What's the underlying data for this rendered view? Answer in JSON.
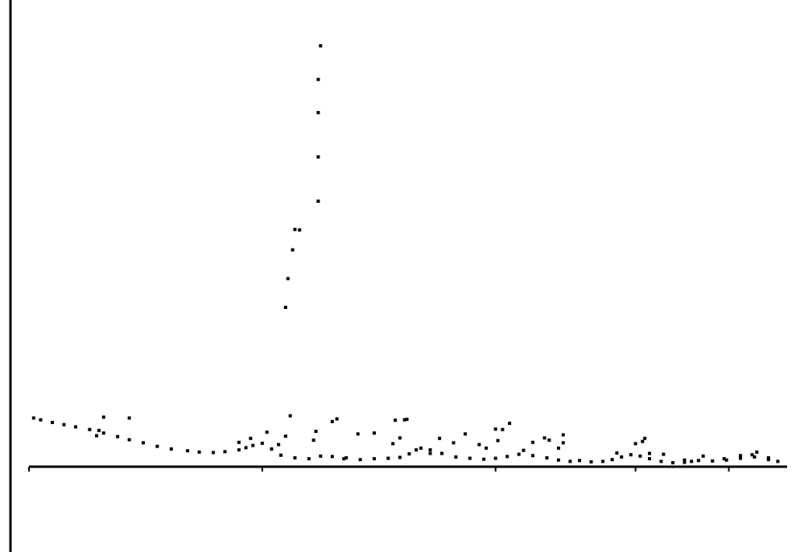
{
  "chart_data": {
    "type": "scatter",
    "title": "",
    "xlabel": "",
    "ylabel": "",
    "grid": false,
    "legend": "top-right",
    "xlim": [
      0,
      32.5
    ],
    "ylim": [
      0,
      100
    ],
    "x_ticks": [
      0,
      10,
      20,
      26,
      30
    ],
    "series": [
      {
        "points": [
          [
            0.2,
            11.0
          ],
          [
            0.5,
            10.6
          ],
          [
            1.0,
            10.0
          ],
          [
            1.5,
            9.5
          ],
          [
            2.0,
            9.0
          ],
          [
            2.6,
            8.4
          ],
          [
            3.2,
            7.6
          ],
          [
            3.8,
            6.8
          ],
          [
            4.3,
            6.1
          ],
          [
            4.9,
            5.4
          ],
          [
            5.5,
            4.6
          ],
          [
            6.1,
            4.0
          ],
          [
            6.8,
            3.6
          ],
          [
            7.3,
            3.3
          ],
          [
            7.9,
            3.2
          ],
          [
            8.4,
            3.4
          ],
          [
            9.0,
            3.8
          ],
          [
            9.3,
            4.3
          ],
          [
            9.6,
            4.8
          ],
          [
            10.0,
            5.3
          ],
          [
            10.4,
            4.0
          ],
          [
            10.8,
            2.6
          ],
          [
            11.4,
            2.0
          ],
          [
            12.0,
            1.8
          ],
          [
            12.5,
            2.4
          ],
          [
            13.0,
            2.3
          ],
          [
            13.6,
            2.0
          ],
          [
            14.2,
            1.6
          ],
          [
            14.8,
            1.8
          ],
          [
            15.4,
            1.9
          ],
          [
            15.9,
            2.1
          ],
          [
            16.3,
            2.9
          ],
          [
            16.8,
            4.2
          ],
          [
            17.2,
            3.8
          ],
          [
            17.7,
            3.0
          ],
          [
            18.3,
            2.2
          ],
          [
            18.9,
            1.9
          ],
          [
            19.5,
            1.7
          ],
          [
            20.0,
            1.9
          ],
          [
            20.5,
            2.3
          ],
          [
            21.0,
            2.8
          ],
          [
            21.6,
            2.5
          ],
          [
            22.2,
            2.0
          ],
          [
            22.7,
            1.5
          ],
          [
            23.2,
            1.2
          ],
          [
            23.6,
            1.4
          ],
          [
            24.1,
            1.1
          ],
          [
            24.6,
            1.2
          ],
          [
            25.0,
            1.6
          ],
          [
            25.4,
            2.2
          ],
          [
            25.8,
            2.7
          ],
          [
            26.2,
            2.4
          ],
          [
            26.6,
            1.8
          ],
          [
            27.1,
            1.2
          ],
          [
            27.6,
            0.9
          ],
          [
            28.1,
            1.0
          ],
          [
            28.7,
            1.4
          ],
          [
            29.3,
            1.3
          ],
          [
            29.9,
            1.5
          ],
          [
            30.5,
            1.9
          ],
          [
            31.1,
            2.2
          ],
          [
            31.7,
            1.6
          ],
          [
            32.1,
            1.2
          ]
        ]
      }
    ],
    "peaks": [
      [
        2.9,
        7.0
      ],
      [
        3.0,
        8.2
      ],
      [
        3.2,
        11.2
      ],
      [
        4.3,
        11.0
      ],
      [
        9.0,
        5.5
      ],
      [
        9.5,
        6.4
      ],
      [
        10.2,
        7.8
      ],
      [
        10.7,
        5.0
      ],
      [
        11.0,
        6.9
      ],
      [
        11.2,
        11.5
      ],
      [
        12.2,
        6.0
      ],
      [
        12.3,
        8.0
      ],
      [
        13.0,
        10.2
      ],
      [
        13.5,
        1.8
      ],
      [
        14.1,
        7.4
      ],
      [
        14.8,
        7.6
      ],
      [
        15.6,
        5.2
      ],
      [
        15.9,
        6.5
      ],
      [
        16.2,
        10.7
      ],
      [
        16.6,
        3.8
      ],
      [
        17.2,
        3.0
      ],
      [
        17.6,
        6.4
      ],
      [
        18.2,
        5.4
      ],
      [
        18.7,
        7.4
      ],
      [
        19.3,
        5.0
      ],
      [
        19.6,
        4.2
      ],
      [
        20.0,
        8.5
      ],
      [
        20.3,
        8.4
      ],
      [
        21.2,
        3.7
      ],
      [
        21.6,
        5.5
      ],
      [
        22.1,
        6.5
      ],
      [
        22.3,
        6.0
      ],
      [
        22.7,
        4.2
      ],
      [
        22.9,
        5.4
      ],
      [
        25.2,
        3.1
      ],
      [
        26.0,
        5.2
      ],
      [
        26.3,
        5.7
      ],
      [
        26.6,
        3.0
      ],
      [
        27.2,
        2.8
      ],
      [
        28.1,
        1.5
      ],
      [
        28.9,
        2.4
      ],
      [
        29.8,
        1.8
      ],
      [
        30.5,
        2.5
      ],
      [
        31.2,
        3.3
      ],
      [
        31.7,
        2.0
      ],
      [
        11.0,
        36.0
      ],
      [
        11.1,
        42.5
      ],
      [
        11.3,
        49.0
      ],
      [
        11.4,
        53.6
      ],
      [
        12.4,
        60.0
      ],
      [
        12.4,
        70.0
      ],
      [
        12.4,
        80.0
      ],
      [
        12.4,
        87.5
      ],
      [
        12.5,
        95.1
      ],
      [
        11.6,
        53.5
      ],
      [
        13.2,
        10.8
      ],
      [
        15.7,
        10.5
      ],
      [
        16.1,
        10.6
      ],
      [
        20.1,
        5.9
      ],
      [
        20.6,
        9.8
      ],
      [
        22.9,
        7.2
      ],
      [
        26.4,
        6.4
      ],
      [
        28.4,
        1.2
      ],
      [
        31.0,
        2.7
      ]
    ]
  }
}
